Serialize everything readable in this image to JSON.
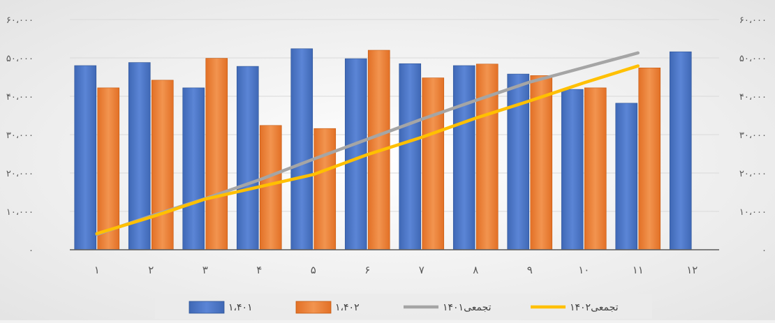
{
  "chart_data": {
    "type": "bar",
    "categories": [
      "۱",
      "۲",
      "۳",
      "۴",
      "۵",
      "۶",
      "۷",
      "۸",
      "۹",
      "۱۰",
      "۱۱",
      "۱۲"
    ],
    "series": [
      {
        "name": "۱،۴۰۱",
        "kind": "bar",
        "color": "#4472c4",
        "values": [
          48000,
          48800,
          42200,
          47800,
          52400,
          49800,
          48500,
          48000,
          45800,
          41800,
          38200,
          51600
        ]
      },
      {
        "name": "۱،۴۰۲",
        "kind": "bar",
        "color": "#ed7d31",
        "values": [
          42200,
          44200,
          49900,
          32400,
          31600,
          52000,
          44800,
          48400,
          45400,
          42200,
          47400,
          null
        ]
      },
      {
        "name": "تجمعی۱۴۰۱",
        "kind": "line",
        "color": "#a5a5a5",
        "values": [
          4000,
          8800,
          13300,
          18200,
          23600,
          28800,
          34000,
          38900,
          43700,
          47500,
          51300,
          null
        ]
      },
      {
        "name": "تجمعی۱۴۰۲",
        "kind": "line",
        "color": "#ffc000",
        "values": [
          4200,
          8500,
          13200,
          16400,
          19600,
          24800,
          29300,
          34300,
          38800,
          43500,
          47900,
          null
        ]
      }
    ],
    "y_ticks": [
      "۰",
      "۱۰،۰۰۰",
      "۲۰،۰۰۰",
      "۳۰،۰۰۰",
      "۴۰،۰۰۰",
      "۵۰،۰۰۰",
      "۶۰،۰۰۰"
    ],
    "ylim": [
      0,
      60000
    ],
    "y_tick_step": 10000,
    "grid": true,
    "legend_position": "bottom",
    "title": "",
    "xlabel": "",
    "ylabel": ""
  }
}
